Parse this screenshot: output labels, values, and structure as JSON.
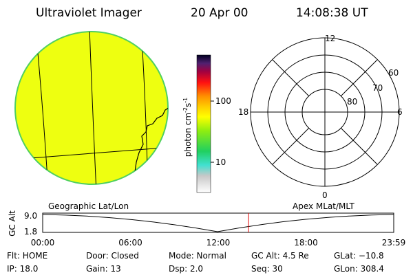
{
  "header": {
    "title": "Ultraviolet Imager",
    "date": "20 Apr 00",
    "time": "14:08:38 UT"
  },
  "colorbar": {
    "label": {
      "base": "photon cm",
      "exp1": "-2",
      "unit": "s",
      "exp2": "-1"
    },
    "ticks": [
      "100",
      "10"
    ]
  },
  "polar": {
    "mlt_labels": [
      "12",
      "18",
      "6",
      "0"
    ],
    "lat_labels": [
      "60",
      "70",
      "80"
    ]
  },
  "panels": {
    "left": "Geographic Lat/Lon",
    "right": "Apex MLat/MLT"
  },
  "altitude_plot": {
    "axis_label": "GC Alt",
    "y_labels": [
      "9.0",
      "1.8"
    ],
    "x_labels": [
      "00:00",
      "06:00",
      "12:00",
      "18:00",
      "23:59"
    ]
  },
  "status": {
    "rows": [
      [
        "Flt: HOME",
        "Door: Closed",
        "Mode: Normal",
        "GC Alt: 4.5 Re",
        "GLat: −10.8"
      ],
      [
        "IP: 18.0",
        "Gain: 13",
        "Dsp:    2.0",
        "Seq: 30",
        "GLon: 308.4"
      ]
    ]
  }
}
